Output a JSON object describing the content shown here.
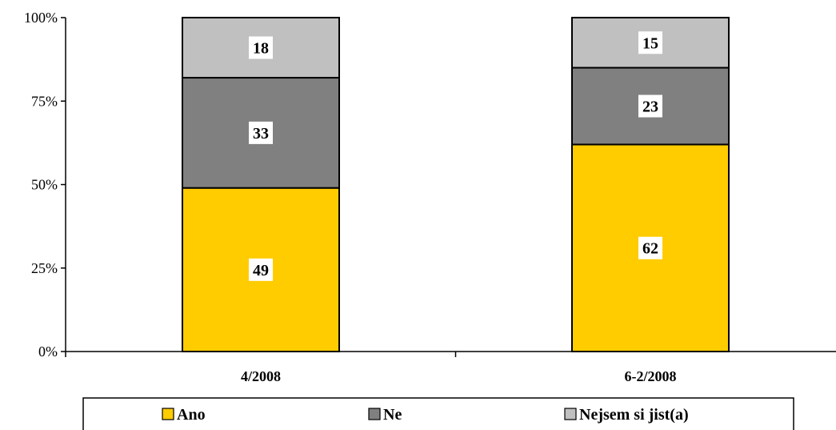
{
  "chart_data": {
    "type": "bar",
    "stacked": true,
    "percent": true,
    "categories": [
      "4/2008",
      "6-2/2008"
    ],
    "series": [
      {
        "name": "Ano",
        "values": [
          49,
          62
        ],
        "color": "#FFCC00"
      },
      {
        "name": "Ne",
        "values": [
          33,
          23
        ],
        "color": "#808080"
      },
      {
        "name": "Nejsem si jist(a)",
        "values": [
          18,
          15
        ],
        "color": "#C0C0C0"
      }
    ],
    "y_ticks": [
      "0%",
      "25%",
      "50%",
      "75%",
      "100%"
    ],
    "ylim": [
      0,
      100
    ],
    "grid": false,
    "legend_position": "bottom",
    "title": "",
    "xlabel": "",
    "ylabel": ""
  }
}
